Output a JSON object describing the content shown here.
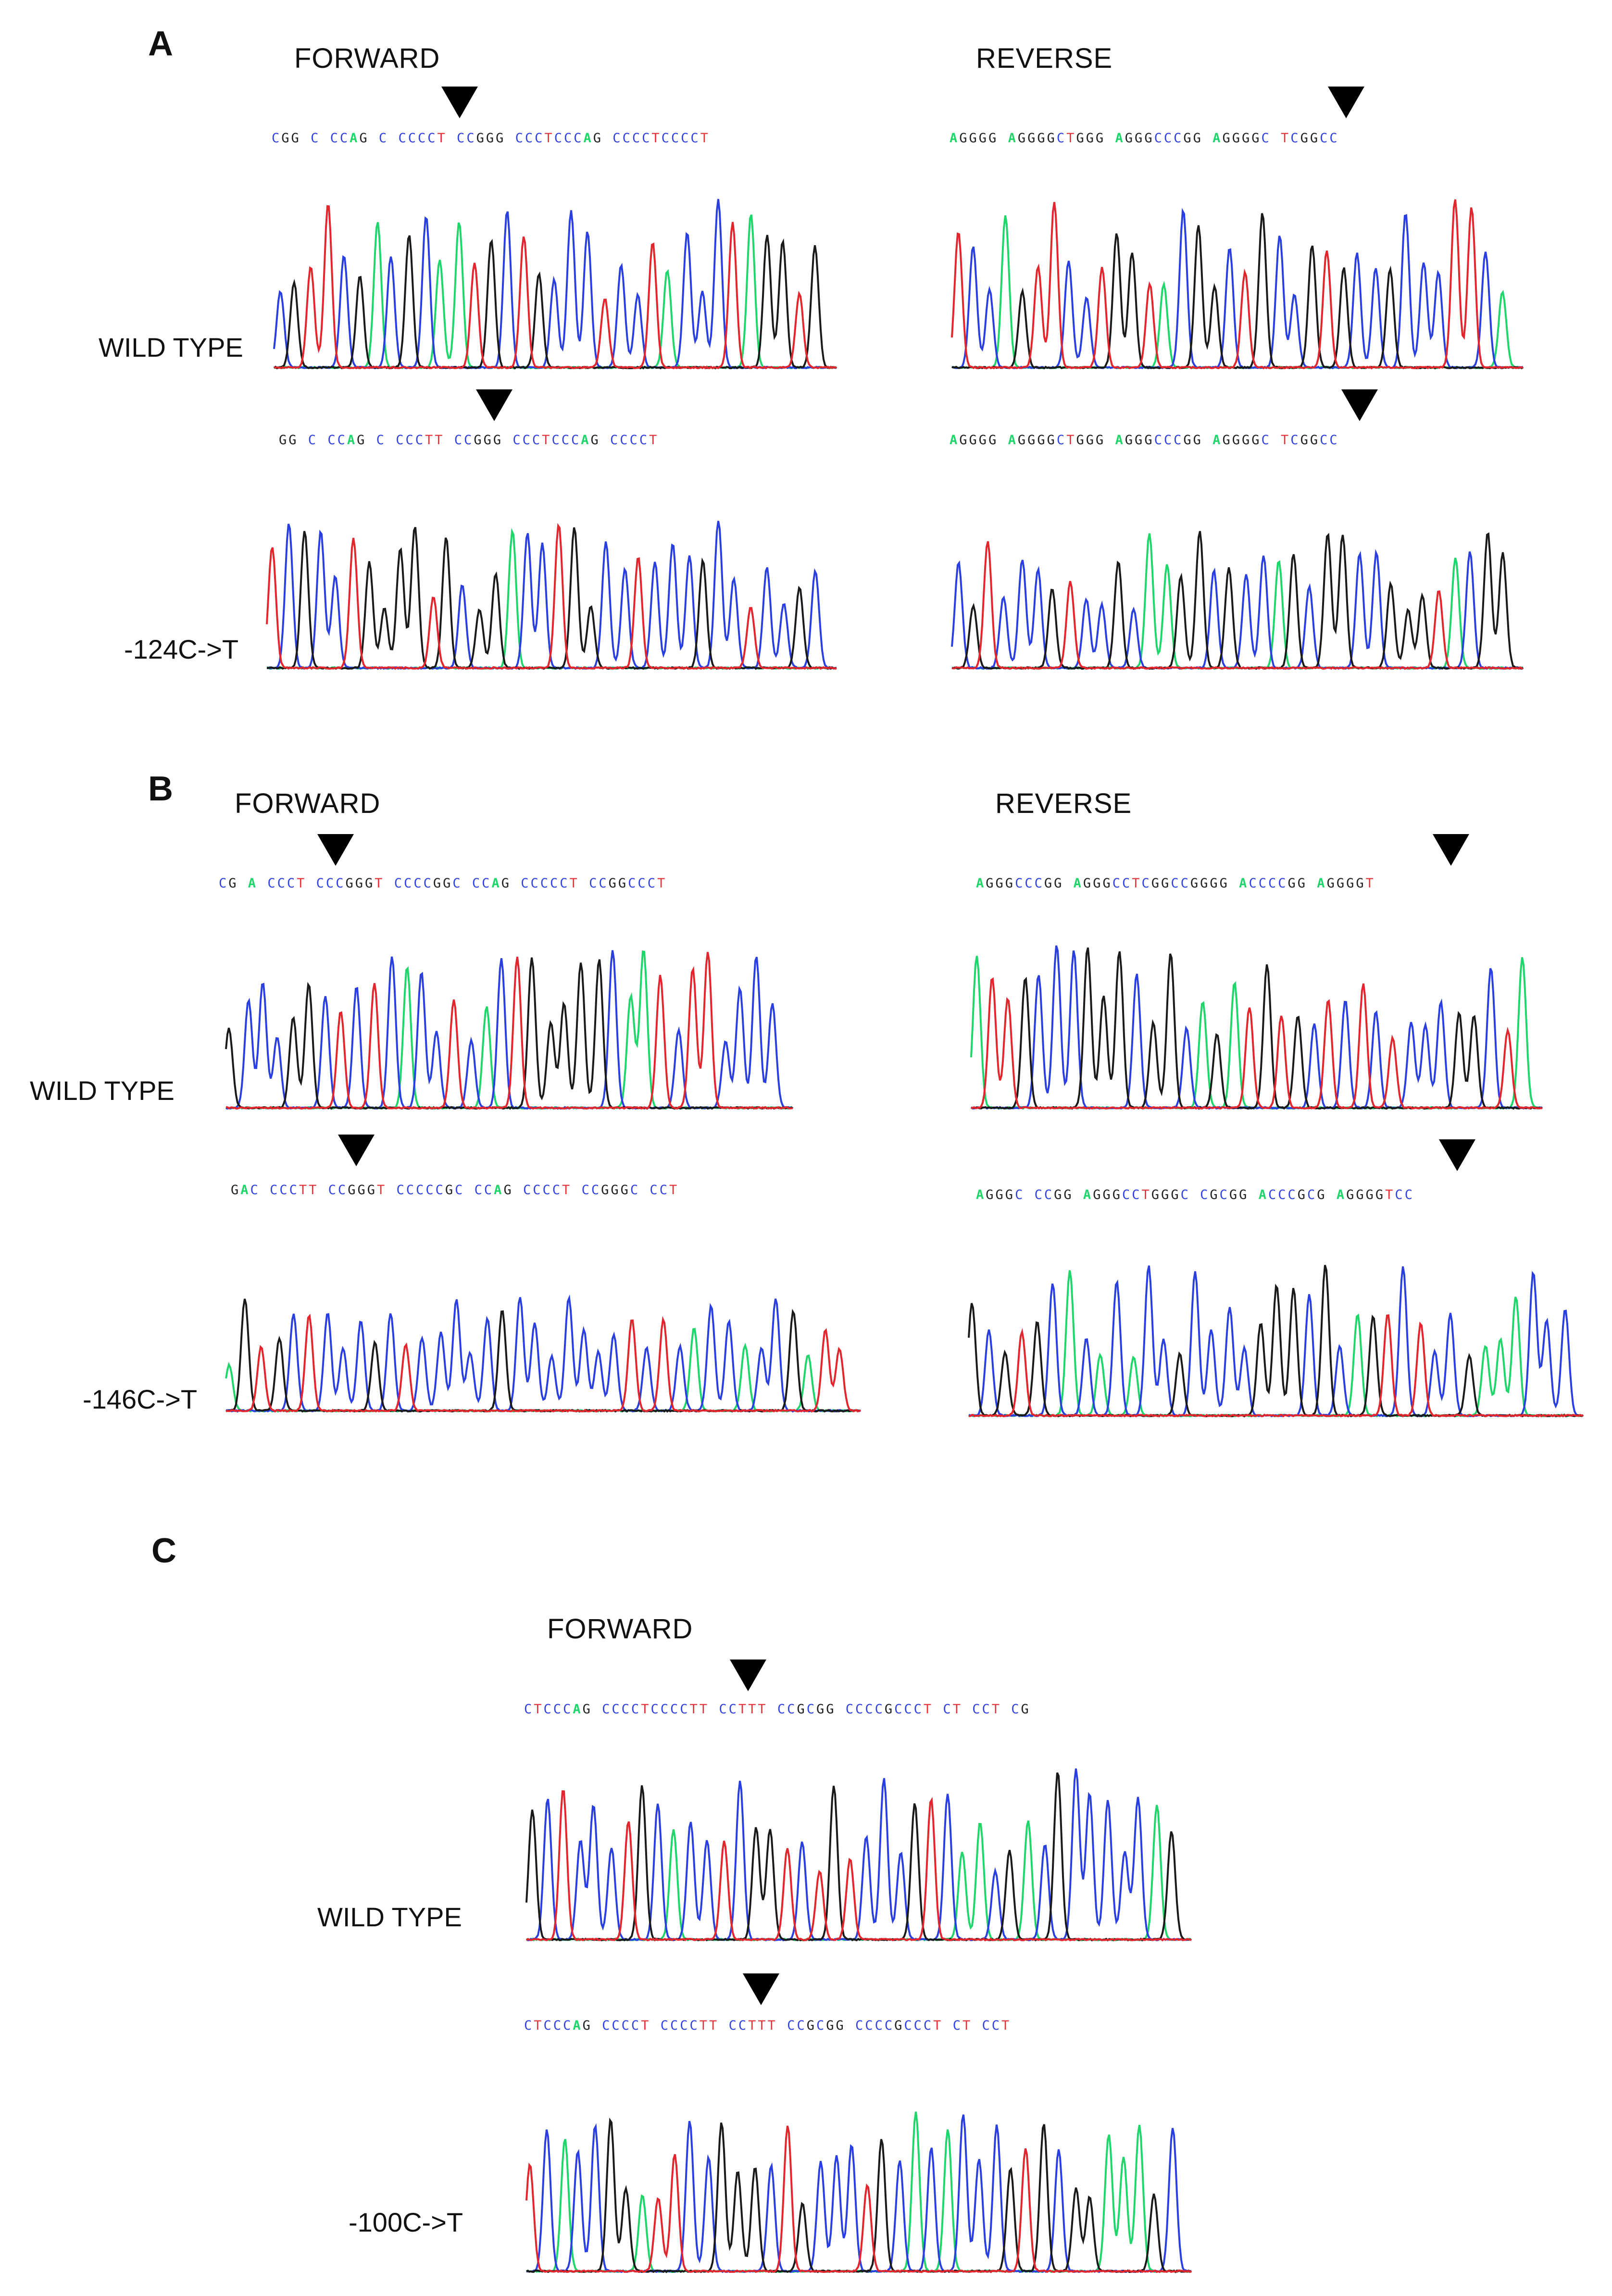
{
  "colors": {
    "A": "#1fd66a",
    "C": "#2a3fe0",
    "G": "#1a1a1a",
    "T": "#e3262d"
  },
  "panels": {
    "A": {
      "letter": "A",
      "forward_label": "FORWARD",
      "reverse_label": "REVERSE",
      "wt_label": "WILD TYPE",
      "mut_label": "-124C->T",
      "seq_fwd_wt": "CGG C CCAG C CCCCT CCGGG CCCTCCCAG CCCCTCCCCT",
      "seq_rev_wt": "AGGGG AGGGGCTGGG AGGGCCCGG AGGGGC TCGGCC",
      "seq_fwd_mut": "GG C CCAG C CCCTT CCGGG CCCTCCCAG CCCCT",
      "seq_rev_mut": "AGGGG AGGGGCTGGG AGGGCCCGG AGGGGC TCGGCC"
    },
    "B": {
      "letter": "B",
      "forward_label": "FORWARD",
      "reverse_label": "REVERSE",
      "wt_label": "WILD TYPE",
      "mut_label": "-146C->T",
      "seq_fwd_wt": "CG A CCCT CCCGGGT CCCCGGC CCAG CCCCCT CCGGCCCT",
      "seq_rev_wt": "AGGGCCCGG AGGGCCTCGGCCGGGG ACCCCGG AGGGGT",
      "seq_fwd_mut": "GAC CCCTT CCGGGT CCCCCGC CCAG CCCCT CCGGGC CCT",
      "seq_rev_mut": "AGGGC CCGG AGGGCCTGGGC CGCGG ACCCGCG AGGGGTCC"
    },
    "C": {
      "letter": "C",
      "forward_label": "FORWARD",
      "wt_label": "WILD TYPE",
      "mut_label": "-100C->T",
      "seq_fwd_wt": "CTCCCAG CCCCTCCCCTT CCTTT CCGCGG CCCCGCCCT CT CCT CG",
      "seq_fwd_mut": "CTCCCAG CCCCT CCCCTT CCTTT CCGCGG CCCCGCCCT CT CCT"
    }
  }
}
